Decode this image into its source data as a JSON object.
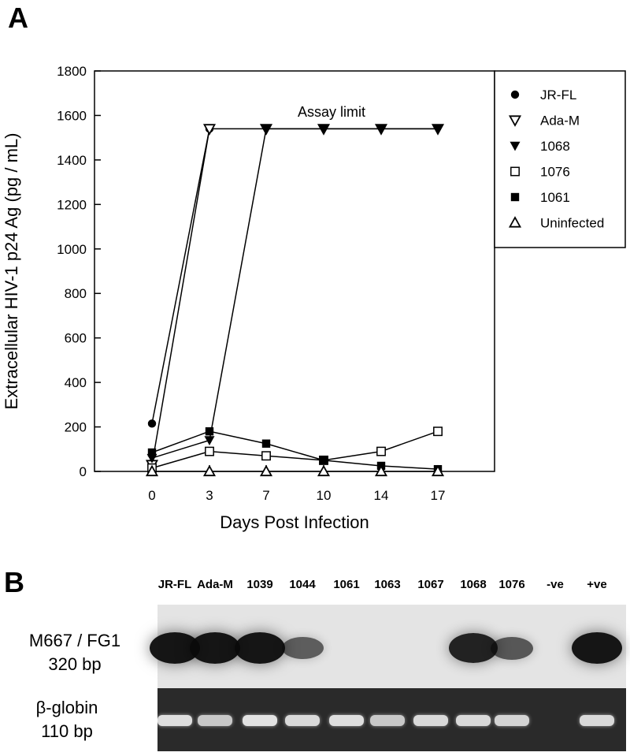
{
  "panel_a_label": "A",
  "panel_b_label": "B",
  "chart_data": {
    "type": "line",
    "xlabel": "Days Post Infection",
    "ylabel": "Extracellular HIV-1 p24 Ag (pg / mL)",
    "x_categories": [
      0,
      3,
      7,
      10,
      14,
      17
    ],
    "yticks": [
      0,
      200,
      400,
      600,
      800,
      1000,
      1200,
      1400,
      1600,
      1800
    ],
    "ylim": [
      0,
      1800
    ],
    "annotation": "Assay limit",
    "legend_position": "top-right",
    "grid": false,
    "series": [
      {
        "name": "JR-FL",
        "marker": "filled-circle",
        "x": [
          0,
          3
        ],
        "values": [
          215,
          1540
        ]
      },
      {
        "name": "Ada-M",
        "marker": "open-down-triangle",
        "x": [
          0,
          3,
          7,
          10,
          14,
          17
        ],
        "values": [
          30,
          1540,
          1540,
          1540,
          1540,
          1540
        ]
      },
      {
        "name": "1068",
        "marker": "filled-down-triangle",
        "x": [
          0,
          3,
          7,
          10,
          14,
          17
        ],
        "values": [
          60,
          140,
          1540,
          1540,
          1540,
          1540
        ]
      },
      {
        "name": "1076",
        "marker": "open-square",
        "x": [
          0,
          3,
          7,
          10,
          14,
          17
        ],
        "values": [
          15,
          90,
          70,
          50,
          90,
          180
        ]
      },
      {
        "name": "1061",
        "marker": "filled-square",
        "x": [
          0,
          3,
          7,
          10,
          14,
          17
        ],
        "values": [
          85,
          180,
          125,
          50,
          25,
          10
        ]
      },
      {
        "name": "Uninfected",
        "marker": "open-up-triangle",
        "x": [
          0,
          3,
          7,
          10,
          14,
          17
        ],
        "values": [
          0,
          0,
          0,
          0,
          0,
          0
        ]
      }
    ]
  },
  "gel": {
    "lanes": [
      "JR-FL",
      "Ada-M",
      "1039",
      "1044",
      "1061",
      "1063",
      "1067",
      "1068",
      "1076",
      "-ve",
      "+ve"
    ],
    "top_label_line1": "M667 / FG1",
    "top_label_line2": "320 bp",
    "bottom_label_line1": "β-globin",
    "bottom_label_line2": "110 bp",
    "top_band_intensity": [
      1.0,
      1.0,
      1.0,
      0.45,
      0,
      0,
      0,
      0.9,
      0.5,
      0,
      1.0
    ],
    "bottom_band_intensity": [
      0.9,
      0.7,
      0.95,
      0.85,
      0.9,
      0.7,
      0.85,
      0.85,
      0.8,
      0,
      0.85
    ]
  }
}
